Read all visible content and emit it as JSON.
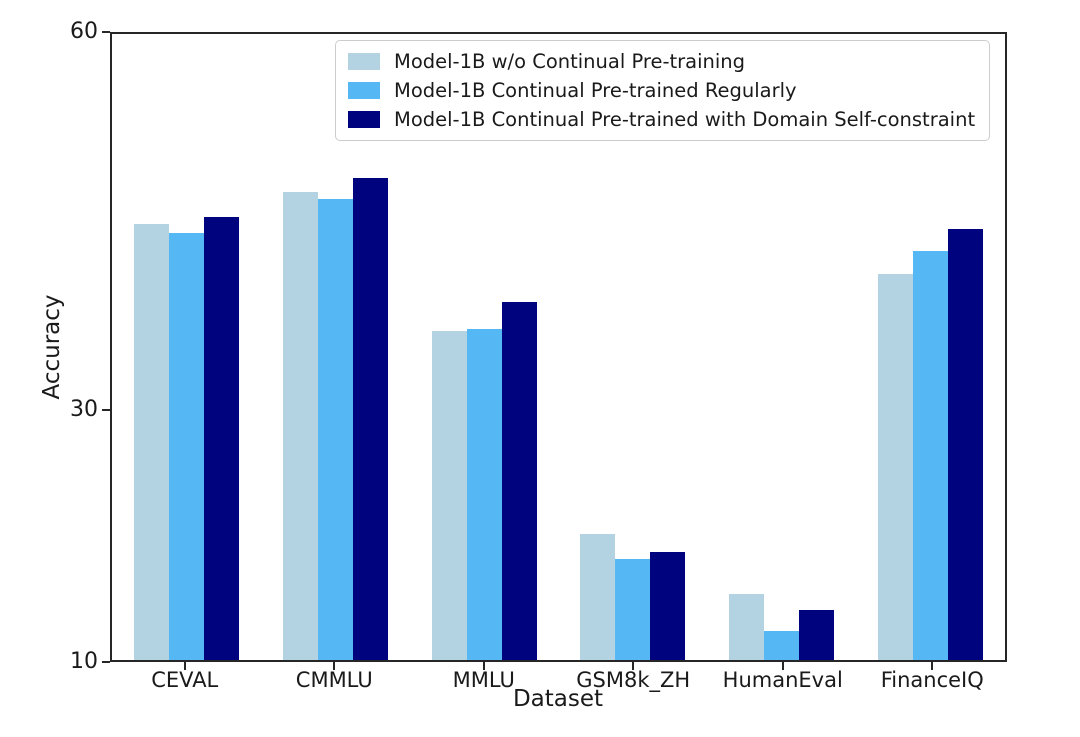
{
  "chart_data": {
    "type": "bar",
    "title": "",
    "xlabel": "Dataset",
    "ylabel": "Accuracy",
    "ylim": [
      10,
      60
    ],
    "yticks": [
      10,
      30,
      60
    ],
    "grid": false,
    "legend_position": "upper center, inside plot",
    "categories": [
      "CEVAL",
      "CMMLU",
      "MMLU",
      "GSM8k_ZH",
      "HumanEval",
      "FinanceIQ"
    ],
    "series": [
      {
        "name": "Model-1B w/o Continual Pre-training",
        "color": "#b4d3e2",
        "values": [
          44.8,
          47.4,
          36.3,
          20.1,
          15.3,
          40.8
        ]
      },
      {
        "name": "Model-1B Continual Pre-trained Regularly",
        "color": "#55b8f5",
        "values": [
          44.1,
          46.8,
          36.4,
          18.1,
          12.3,
          42.7
        ]
      },
      {
        "name": "Model-1B Continual Pre-trained with Domain Self-constraint",
        "color": "#00037e",
        "values": [
          45.4,
          48.5,
          38.6,
          18.6,
          14.0,
          44.4
        ]
      }
    ]
  }
}
